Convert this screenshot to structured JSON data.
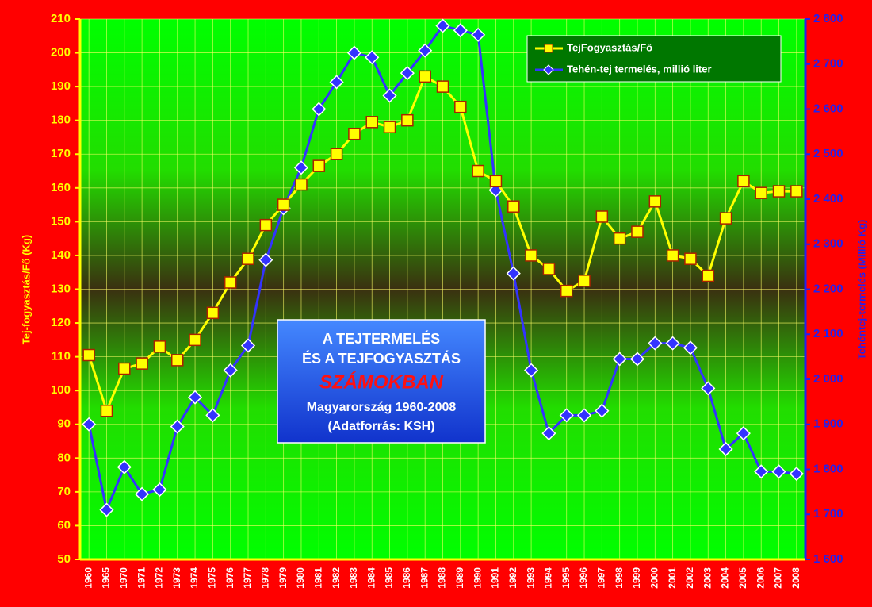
{
  "chart_data": {
    "type": "line",
    "ylabel": "Tej-fogyasztás/Fő (Kg)",
    "y2label": "Tehéntej-termelés (Millió Kg)",
    "annotations": [
      "A TEJTERMELÉS",
      "ÉS A TEJFOGYASZTÁS",
      "SZÁMOKBAN",
      "Magyarország 1960-2008",
      "(Adatforrás: KSH)"
    ],
    "categories": [
      "1960",
      "1965",
      "1970",
      "1971",
      "1972",
      "1973",
      "1974",
      "1975",
      "1976",
      "1977",
      "1978",
      "1979",
      "1980",
      "1981",
      "1982",
      "1983",
      "1984",
      "1985",
      "1986",
      "1987",
      "1988",
      "1989",
      "1990",
      "1991",
      "1992",
      "1993",
      "1994",
      "1995",
      "1996",
      "1997",
      "1998",
      "1999",
      "2000",
      "2001",
      "2002",
      "2003",
      "2004",
      "2005",
      "2006",
      "2007",
      "2008"
    ],
    "series": [
      {
        "name": "TejFogyasztás/Fő",
        "color": "#ffff00",
        "marker": "square",
        "values": [
          110.5,
          94,
          106.5,
          108,
          113,
          109,
          115,
          123,
          132,
          139,
          149,
          155,
          161,
          166.5,
          170,
          176,
          179.5,
          178,
          180,
          193,
          190,
          184,
          165,
          162,
          154.5,
          140,
          136,
          129.5,
          132.5,
          151.5,
          145,
          147,
          156,
          140,
          139,
          134,
          151,
          162,
          158.5,
          159,
          159
        ]
      },
      {
        "name": "Tehén-tej termelés, millió liter",
        "color": "#3333ff",
        "marker": "diamond",
        "axis": "y2",
        "values": [
          1900,
          1710,
          1805,
          1745,
          1755,
          1895,
          1960,
          1920,
          2020,
          2075,
          2265,
          2380,
          2470,
          2600,
          2660,
          2725,
          2715,
          2630,
          2680,
          2730,
          2785,
          2775,
          2765,
          2420,
          2235,
          2020,
          1880,
          1920,
          1920,
          1930,
          2045,
          2045,
          2080,
          2080,
          2070,
          1980,
          1845,
          1880,
          1795,
          1795,
          1790
        ]
      }
    ],
    "ylim": [
      50,
      210
    ],
    "yticks": [
      50,
      60,
      70,
      80,
      90,
      100,
      110,
      120,
      130,
      140,
      150,
      160,
      170,
      180,
      190,
      200,
      210
    ],
    "y2lim": [
      1600,
      2800
    ],
    "y2ticks": [
      {
        "value": 1600,
        "label": "1 600"
      },
      {
        "value": 1700,
        "label": "1 700"
      },
      {
        "value": 1800,
        "label": "1 800"
      },
      {
        "value": 1900,
        "label": "1 900"
      },
      {
        "value": 2000,
        "label": "2 000"
      },
      {
        "value": 2100,
        "label": "2 100"
      },
      {
        "value": 2200,
        "label": "2 200"
      },
      {
        "value": 2300,
        "label": "2 300"
      },
      {
        "value": 2400,
        "label": "2 400"
      },
      {
        "value": 2500,
        "label": "2 500"
      },
      {
        "value": 2600,
        "label": "2 600"
      },
      {
        "value": 2700,
        "label": "2 700"
      },
      {
        "value": 2800,
        "label": "2 800"
      }
    ],
    "grid": true,
    "legend": "upper right"
  }
}
